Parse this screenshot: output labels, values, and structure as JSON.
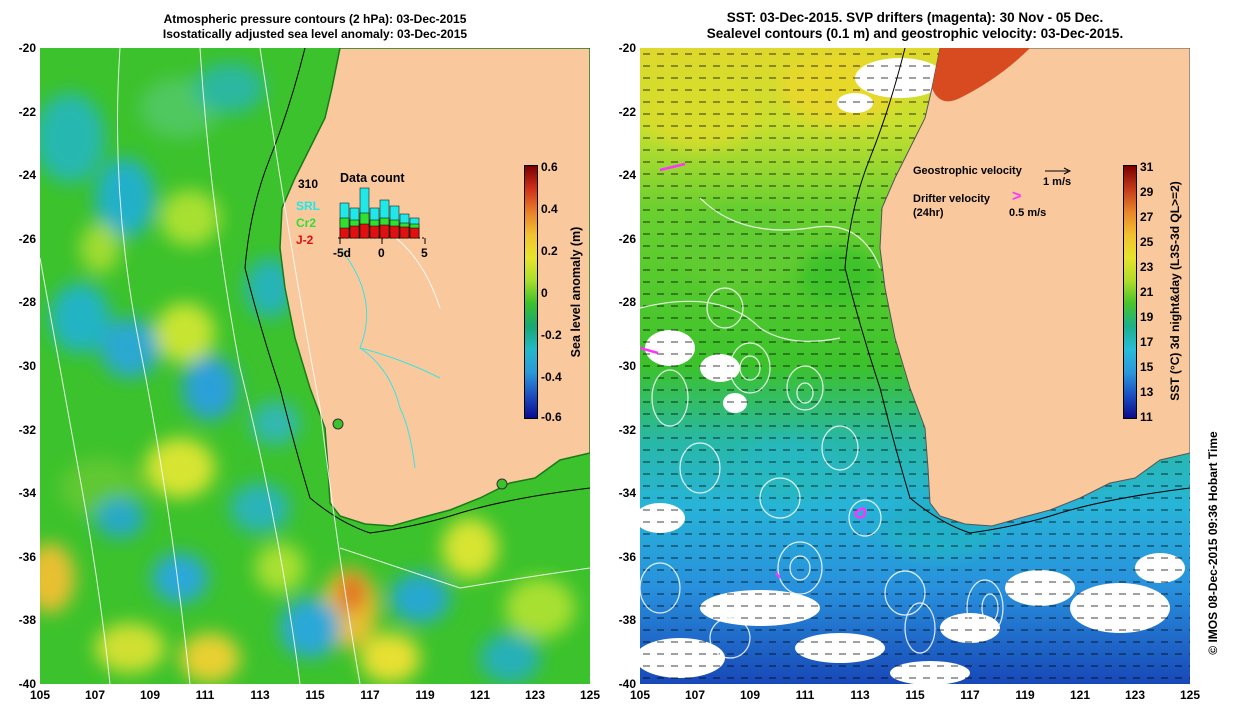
{
  "left_panel": {
    "title_line1": "Atmospheric pressure contours (2 hPa): 03-Dec-2015",
    "title_line2": "Isostatically adjusted sea level anomaly: 03-Dec-2015",
    "colorbar": {
      "label": "Sea level anomaly (m)",
      "ticks": [
        "0.6",
        "0.4",
        "0.2",
        "0",
        "-0.2",
        "-0.4",
        "-0.6"
      ]
    },
    "inset": {
      "title": "Data count",
      "max_label": "310",
      "legend": [
        {
          "name": "SRL",
          "color": "#20e8e8"
        },
        {
          "name": "Cr2",
          "color": "#30e030"
        },
        {
          "name": "J-2",
          "color": "#e01010"
        }
      ],
      "x_ticks": [
        "-5d",
        "0",
        "5"
      ]
    }
  },
  "right_panel": {
    "title_line1": "SST: 03-Dec-2015. SVP drifters (magenta): 30 Nov - 05 Dec.",
    "title_line2": "Sealevel contours (0.1 m) and geostrophic velocity: 03-Dec-2015.",
    "legend": {
      "geo_label": "Geostrophic velocity",
      "geo_scale": "1 m/s",
      "drifter_label": "Drifter velocity",
      "drifter_sub": "(24hr)",
      "drifter_scale": "0.5 m/s",
      "drifter_symbol": ">"
    },
    "colorbar": {
      "label": "SST (°C) 3d night&day (L3S-3d QL>=2)",
      "ticks": [
        "31",
        "29",
        "27",
        "25",
        "23",
        "21",
        "19",
        "17",
        "15",
        "13",
        "11"
      ]
    }
  },
  "axes": {
    "y_ticks": [
      "-20",
      "-22",
      "-24",
      "-26",
      "-28",
      "-30",
      "-32",
      "-34",
      "-36",
      "-38",
      "-40"
    ],
    "x_ticks": [
      "105",
      "107",
      "109",
      "111",
      "113",
      "115",
      "117",
      "119",
      "121",
      "123",
      "125"
    ]
  },
  "credit": "© IMOS 08-Dec-2015 09:36 Hobart Time",
  "colors": {
    "land": "#f9c99d",
    "sea_green": "#3cc22c",
    "drifter": "#ff33ff"
  }
}
